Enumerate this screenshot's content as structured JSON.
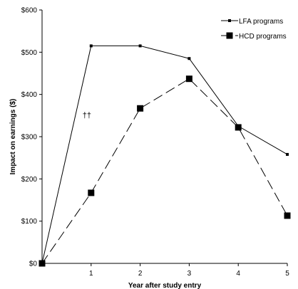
{
  "chart_data": {
    "type": "line",
    "title": "",
    "xlabel": "Year after study entry",
    "ylabel": "Impact on earnings ($)",
    "x": [
      0,
      1,
      2,
      3,
      4,
      5
    ],
    "x_tick_labels": [
      "",
      "1",
      "2",
      "3",
      "4",
      "5"
    ],
    "xlim": [
      0,
      5
    ],
    "ylim": [
      0,
      600
    ],
    "y_ticks": [
      0,
      100,
      200,
      300,
      400,
      500,
      600
    ],
    "y_tick_labels": [
      "$0",
      "$100",
      "$200",
      "$300",
      "$400",
      "$500",
      "$600"
    ],
    "grid": false,
    "legend_position": "top-right",
    "series": [
      {
        "name": "LFA programs",
        "values": [
          0,
          515,
          515,
          485,
          325,
          258
        ],
        "line_style": "solid",
        "marker": "small-square",
        "color": "#000000"
      },
      {
        "name": "HCD programs",
        "values": [
          0,
          167,
          367,
          437,
          322,
          113
        ],
        "line_style": "dashed",
        "marker": "large-square",
        "color": "#000000"
      }
    ],
    "annotations": [
      {
        "text": "††",
        "x": 1,
        "y": 345
      }
    ]
  }
}
